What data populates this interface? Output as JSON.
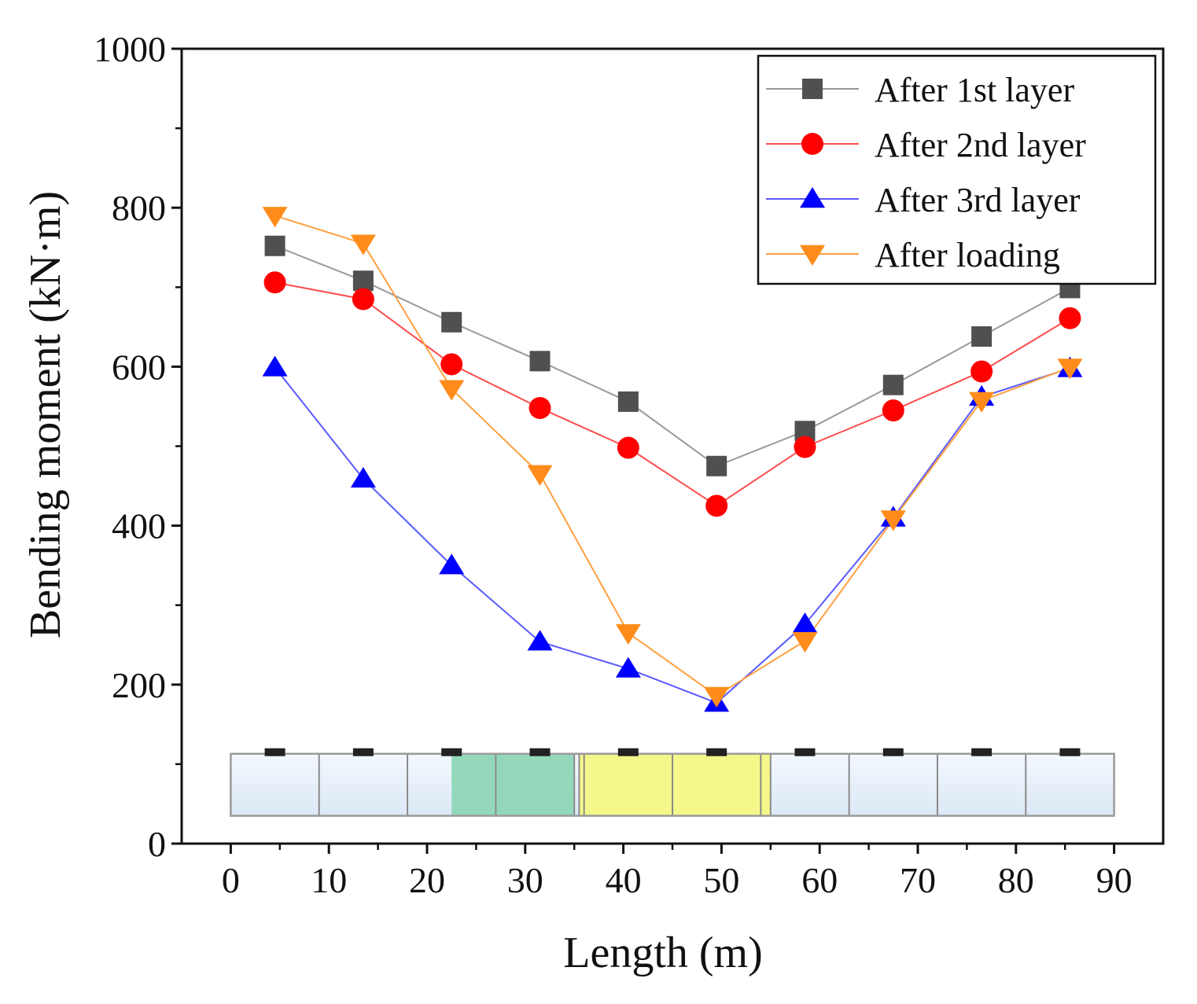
{
  "chart_data": {
    "type": "line",
    "xlabel": "Length (m)",
    "ylabel": "Bending moment (kN·m)",
    "xlim": [
      -5,
      95
    ],
    "ylim": [
      0,
      1000
    ],
    "xticks": [
      0,
      10,
      20,
      30,
      40,
      50,
      60,
      70,
      80,
      90
    ],
    "yticks": [
      0,
      200,
      400,
      600,
      800,
      1000
    ],
    "yticks_minor": [
      100,
      300,
      500,
      700,
      900
    ],
    "grid": false,
    "legend_position": "top-right",
    "x": [
      4.5,
      13.5,
      22.5,
      31.5,
      40.5,
      49.5,
      58.5,
      67.5,
      76.5,
      85.5
    ],
    "series": [
      {
        "name": "After 1st layer",
        "color": "#505050",
        "line_color": "#9a9a9a",
        "marker": "square",
        "values": [
          752,
          708,
          656,
          607,
          556,
          475,
          519,
          577,
          638,
          699
        ]
      },
      {
        "name": "After 2nd layer",
        "color": "#ff0000",
        "line_color": "#ff4d4d",
        "marker": "circle",
        "values": [
          706,
          685,
          603,
          548,
          498,
          425,
          499,
          545,
          594,
          661
        ]
      },
      {
        "name": "After 3rd layer",
        "color": "#0000ff",
        "line_color": "#5a5aff",
        "marker": "triangle-up",
        "values": [
          599,
          459,
          350,
          254,
          220,
          177,
          276,
          410,
          562,
          598
        ]
      },
      {
        "name": "After loading",
        "color": "#ff8c1a",
        "line_color": "#ffa040",
        "marker": "triangle-down",
        "values": [
          790,
          755,
          572,
          465,
          265,
          186,
          255,
          408,
          557,
          599
        ]
      }
    ],
    "inset": {
      "x_start": 0,
      "x_end": 90,
      "y_bottom": 35,
      "y_top": 113,
      "segment_boundaries": [
        9,
        18,
        27,
        36,
        45,
        54,
        63,
        72,
        81
      ],
      "green_region": [
        22.5,
        35
      ],
      "yellow_region": [
        35.5,
        55
      ],
      "support_positions": [
        4.5,
        13.5,
        22.5,
        31.5,
        40.5,
        49.5,
        58.5,
        67.5,
        76.5,
        85.5
      ],
      "support_level": 115,
      "colors": {
        "base": "#dbe8f5",
        "green": "#94d8bb",
        "yellow": "#f4f88a",
        "edge": "#8a8a8a",
        "support": "#222222"
      }
    }
  }
}
